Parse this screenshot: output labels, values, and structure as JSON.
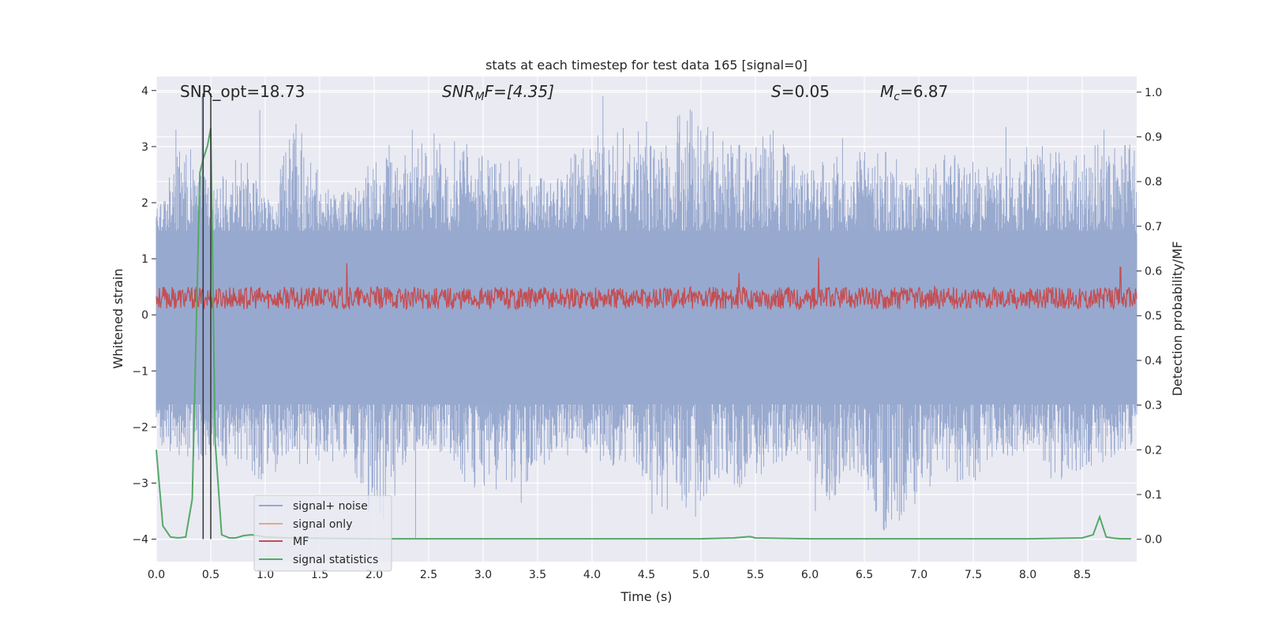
{
  "chart_data": {
    "type": "line",
    "title": "stats at each timestep for test data 165 [signal=0]",
    "xlabel": "Time (s)",
    "ylabel": "Whitened strain",
    "ylabel_right": "Detection probability/MF",
    "xlim": [
      0.0,
      9.0
    ],
    "ylim": [
      -4.4,
      4.25
    ],
    "ylim_right": [
      -0.05,
      1.035
    ],
    "x_ticks": [
      0.0,
      0.5,
      1.0,
      1.5,
      2.0,
      2.5,
      3.0,
      3.5,
      4.0,
      4.5,
      5.0,
      5.5,
      6.0,
      6.5,
      7.0,
      7.5,
      8.0,
      8.5
    ],
    "x_tick_labels": [
      "0.0",
      "0.5",
      "1.0",
      "1.5",
      "2.0",
      "2.5",
      "3.0",
      "3.5",
      "4.0",
      "4.5",
      "5.0",
      "5.5",
      "6.0",
      "6.5",
      "7.0",
      "7.5",
      "8.0",
      "8.5"
    ],
    "y_ticks": [
      -4,
      -3,
      -2,
      -1,
      0,
      1,
      2,
      3,
      4
    ],
    "y_tick_labels": [
      "−4",
      "−3",
      "−2",
      "−1",
      "0",
      "1",
      "2",
      "3",
      "4"
    ],
    "y_ticks_right": [
      0.0,
      0.1,
      0.2,
      0.3,
      0.4,
      0.5,
      0.6,
      0.7,
      0.8,
      0.9,
      1.0
    ],
    "y_tick_labels_right": [
      "0.0",
      "0.1",
      "0.2",
      "0.3",
      "0.4",
      "0.5",
      "0.6",
      "0.7",
      "0.8",
      "0.9",
      "1.0"
    ],
    "grid": true,
    "legend_position": "lower-left",
    "annotations": {
      "snr_opt": "SNR_opt=18.73",
      "snr_mf_main": "SNR",
      "snr_mf_sub": "M",
      "snr_mf_rest": "F=[4.35]",
      "s_main": "S",
      "s_rest": "=0.05",
      "mc_main": "M",
      "mc_sub": "c",
      "mc_rest": "=6.87"
    },
    "vertical_lines_x": [
      0.43,
      0.5
    ],
    "series": [
      {
        "name": "signal+ noise",
        "axis": "left",
        "color": "#98a9cf",
        "kind": "noise",
        "envelope_top": [
          1.9,
          3.3,
          2.2,
          3.0,
          2.1,
          3.6,
          2.3,
          2.2,
          3.1,
          2.9,
          3.3,
          3.1,
          2.7,
          3.0,
          2.3,
          3.1,
          3.3,
          3.5,
          3.0,
          3.9,
          3.2,
          3.0,
          3.4,
          2.7,
          2.8,
          2.9,
          3.1,
          2.6,
          2.9,
          2.8,
          2.6,
          3.2,
          3.0,
          2.9,
          3.2,
          3.0
        ],
        "envelope_bottom": [
          -2.3,
          -2.6,
          -2.6,
          -2.8,
          -3.0,
          -2.7,
          -2.6,
          -2.7,
          -4.0,
          -2.5,
          -2.4,
          -3.0,
          -3.4,
          -3.1,
          -2.6,
          -2.5,
          -2.7,
          -2.7,
          -3.5,
          -3.6,
          -3.0,
          -3.1,
          -2.7,
          -2.6,
          -3.5,
          -2.8,
          -3.9,
          -3.6,
          -2.8,
          -3.1,
          -2.5,
          -2.6,
          -3.0,
          -2.8,
          -2.6,
          -2.4
        ],
        "spikes": [
          {
            "x": 0.18,
            "y": 3.3
          },
          {
            "x": 0.42,
            "y": 3.9
          },
          {
            "x": 0.95,
            "y": 3.65
          },
          {
            "x": 2.35,
            "y": 3.3
          },
          {
            "x": 4.1,
            "y": 3.9
          },
          {
            "x": 4.5,
            "y": 3.45
          },
          {
            "x": 5.05,
            "y": 3.2
          },
          {
            "x": 6.3,
            "y": 3.15
          },
          {
            "x": 7.8,
            "y": 3.35
          },
          {
            "x": 8.7,
            "y": 3.3
          },
          {
            "x": 1.95,
            "y": -3.5
          },
          {
            "x": 2.38,
            "y": -4.0
          },
          {
            "x": 3.35,
            "y": -3.35
          },
          {
            "x": 4.55,
            "y": -3.55
          },
          {
            "x": 4.95,
            "y": -3.6
          },
          {
            "x": 6.05,
            "y": -3.5
          },
          {
            "x": 6.7,
            "y": -3.8
          },
          {
            "x": 6.75,
            "y": -3.65
          }
        ]
      },
      {
        "name": "signal only",
        "axis": "left",
        "color": "#e8a58b",
        "kind": "none"
      },
      {
        "name": "MF",
        "axis": "left",
        "color": "#c44e52",
        "kind": "band",
        "center": 0.3,
        "half_width": 0.2,
        "peaks": [
          {
            "x": 1.75,
            "y": 0.92
          },
          {
            "x": 6.08,
            "y": 1.02
          },
          {
            "x": 5.35,
            "y": 0.75
          },
          {
            "x": 8.85,
            "y": 0.85
          }
        ]
      },
      {
        "name": "signal statistics",
        "axis": "right",
        "color": "#55a868",
        "kind": "line",
        "x": [
          0.0,
          0.06,
          0.13,
          0.2,
          0.27,
          0.33,
          0.4,
          0.43,
          0.47,
          0.5,
          0.54,
          0.6,
          0.67,
          0.73,
          0.8,
          0.87,
          0.93,
          1.0,
          1.2,
          1.5,
          2.0,
          3.0,
          4.0,
          5.0,
          5.3,
          5.45,
          5.5,
          6.0,
          7.0,
          8.0,
          8.5,
          8.6,
          8.66,
          8.72,
          8.8,
          8.86,
          8.95
        ],
        "y": [
          0.2,
          0.03,
          0.005,
          0.003,
          0.005,
          0.09,
          0.82,
          0.85,
          0.88,
          0.92,
          0.22,
          0.01,
          0.003,
          0.003,
          0.008,
          0.01,
          0.008,
          0.005,
          0.003,
          0.002,
          0.001,
          0.001,
          0.001,
          0.001,
          0.003,
          0.006,
          0.003,
          0.001,
          0.001,
          0.001,
          0.003,
          0.01,
          0.05,
          0.005,
          0.002,
          0.001,
          0.001
        ]
      }
    ]
  }
}
